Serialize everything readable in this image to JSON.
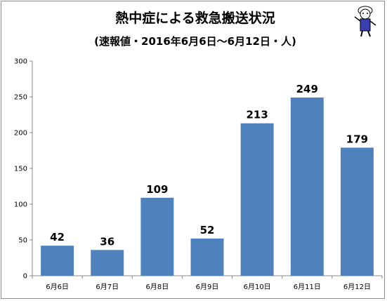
{
  "chart_data": {
    "type": "bar",
    "title": "熱中症による救急搬送状況",
    "subtitle": "(速報値・2016年6月6日～6月12日・人)",
    "categories": [
      "6月6日",
      "6月7日",
      "6月8日",
      "6月9日",
      "6月10日",
      "6月11日",
      "6月12日"
    ],
    "values": [
      42,
      36,
      109,
      52,
      213,
      249,
      179
    ],
    "ylim": [
      0,
      300
    ],
    "yticks": [
      0,
      50,
      100,
      150,
      200,
      250,
      300
    ],
    "grid": false,
    "bar_color": "#4f81bd",
    "data_labels": true,
    "mascot_icon": "mascot-character-icon"
  }
}
